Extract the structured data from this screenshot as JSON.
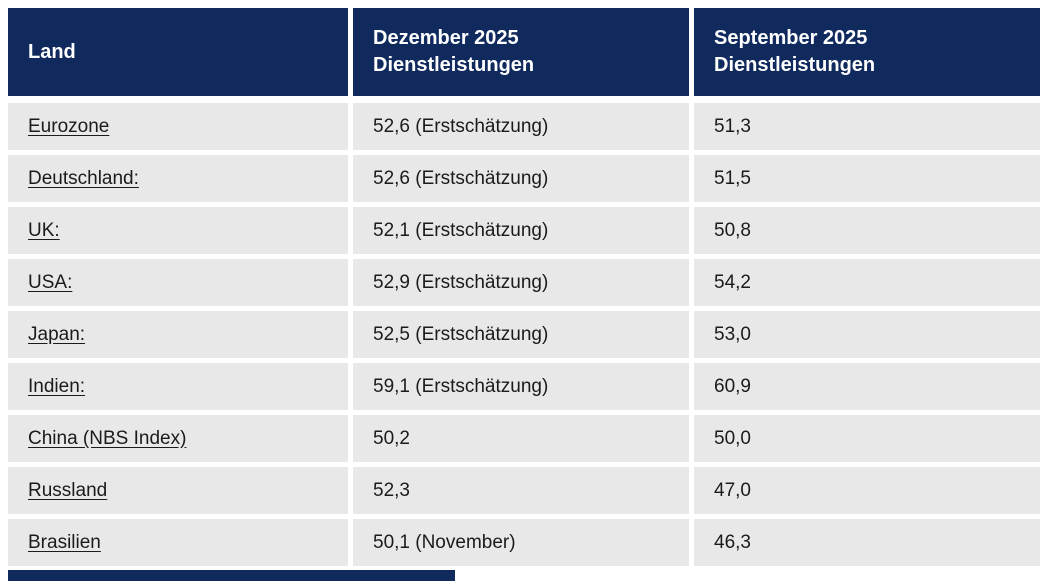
{
  "table": {
    "columns": [
      {
        "label": "Land"
      },
      {
        "label": "Dezember 2025 Dienstleistungen"
      },
      {
        "label": "September 2025 Dienstleistungen"
      }
    ],
    "rows": [
      {
        "land": "Eurozone",
        "dez": "52,6 (Erstschätzung)",
        "sep": "51,3"
      },
      {
        "land": "Deutschland:",
        "dez": "52,6 (Erstschätzung)",
        "sep": "51,5"
      },
      {
        "land": "UK:",
        "dez": "52,1 (Erstschätzung)",
        "sep": "50,8"
      },
      {
        "land": "USA:",
        "dez": "52,9 (Erstschätzung)",
        "sep": "54,2"
      },
      {
        "land": "Japan:",
        "dez": "52,5 (Erstschätzung)",
        "sep": "53,0"
      },
      {
        "land": "Indien:",
        "dez": "59,1 (Erstschätzung)",
        "sep": "60,9"
      },
      {
        "land": "China (NBS Index)",
        "dez": "50,2",
        "sep": "50,0"
      },
      {
        "land": "Russland",
        "dez": "52,3",
        "sep": "47,0"
      },
      {
        "land": "Brasilien",
        "dez": "50,1 (November)",
        "sep": "46,3"
      }
    ],
    "colors": {
      "header_bg": "#102a5e",
      "row_bg": "#e8e8e8",
      "header_text": "#ffffff",
      "body_text": "#1b1b1b"
    }
  }
}
